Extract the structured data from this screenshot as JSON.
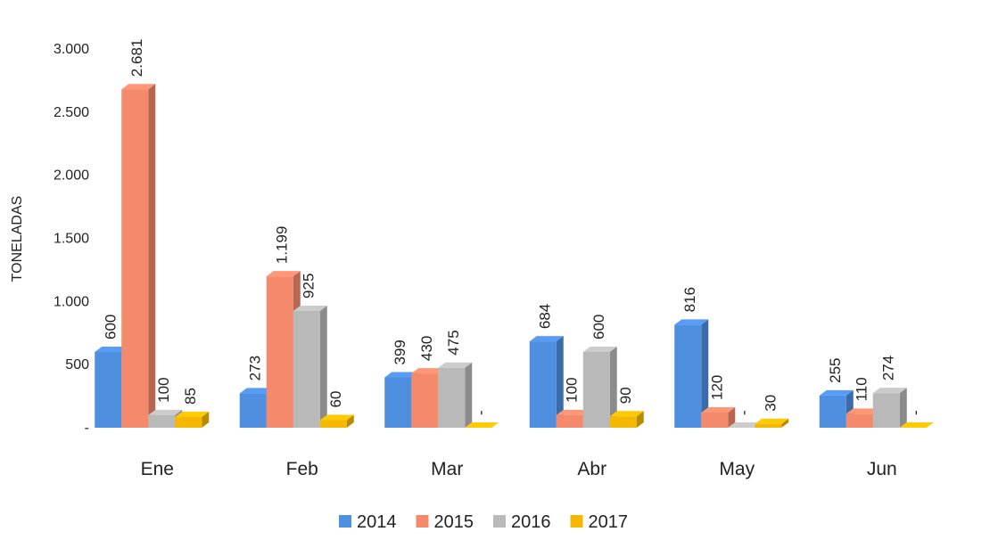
{
  "chart_data": {
    "type": "bar",
    "y_label": "TONELADAS",
    "categories": [
      "Ene",
      "Feb",
      "Mar",
      "Abr",
      "May",
      "Jun"
    ],
    "series": [
      {
        "name": "2014",
        "color": "#4f8fe0",
        "values": [
          600,
          273,
          399,
          684,
          816,
          255
        ]
      },
      {
        "name": "2015",
        "color": "#f4896b",
        "values": [
          2681,
          1199,
          430,
          100,
          120,
          110
        ],
        "value_labels": [
          "2.681",
          "1.199",
          "430",
          "100",
          "120",
          "110"
        ]
      },
      {
        "name": "2016",
        "color": "#b9b9b9",
        "values": [
          100,
          925,
          475,
          600,
          0,
          274
        ],
        "value_labels": [
          "100",
          "925",
          "475",
          "600",
          "-",
          "274"
        ]
      },
      {
        "name": "2017",
        "color": "#f5b800",
        "values": [
          85,
          60,
          0,
          90,
          30,
          0
        ],
        "value_labels": [
          "85",
          "60",
          "-",
          "90",
          "30",
          "-"
        ]
      }
    ],
    "ylim": [
      0,
      3000
    ],
    "yticks": [
      {
        "value": 0,
        "label": "-"
      },
      500,
      {
        "value": 1000,
        "label": "1.000"
      },
      {
        "value": 1500,
        "label": "1.500"
      },
      {
        "value": 2000,
        "label": "2.000"
      },
      {
        "value": 2500,
        "label": "2.500"
      },
      {
        "value": 3000,
        "label": "3.000"
      }
    ],
    "grid": false,
    "legend": "bottom"
  }
}
